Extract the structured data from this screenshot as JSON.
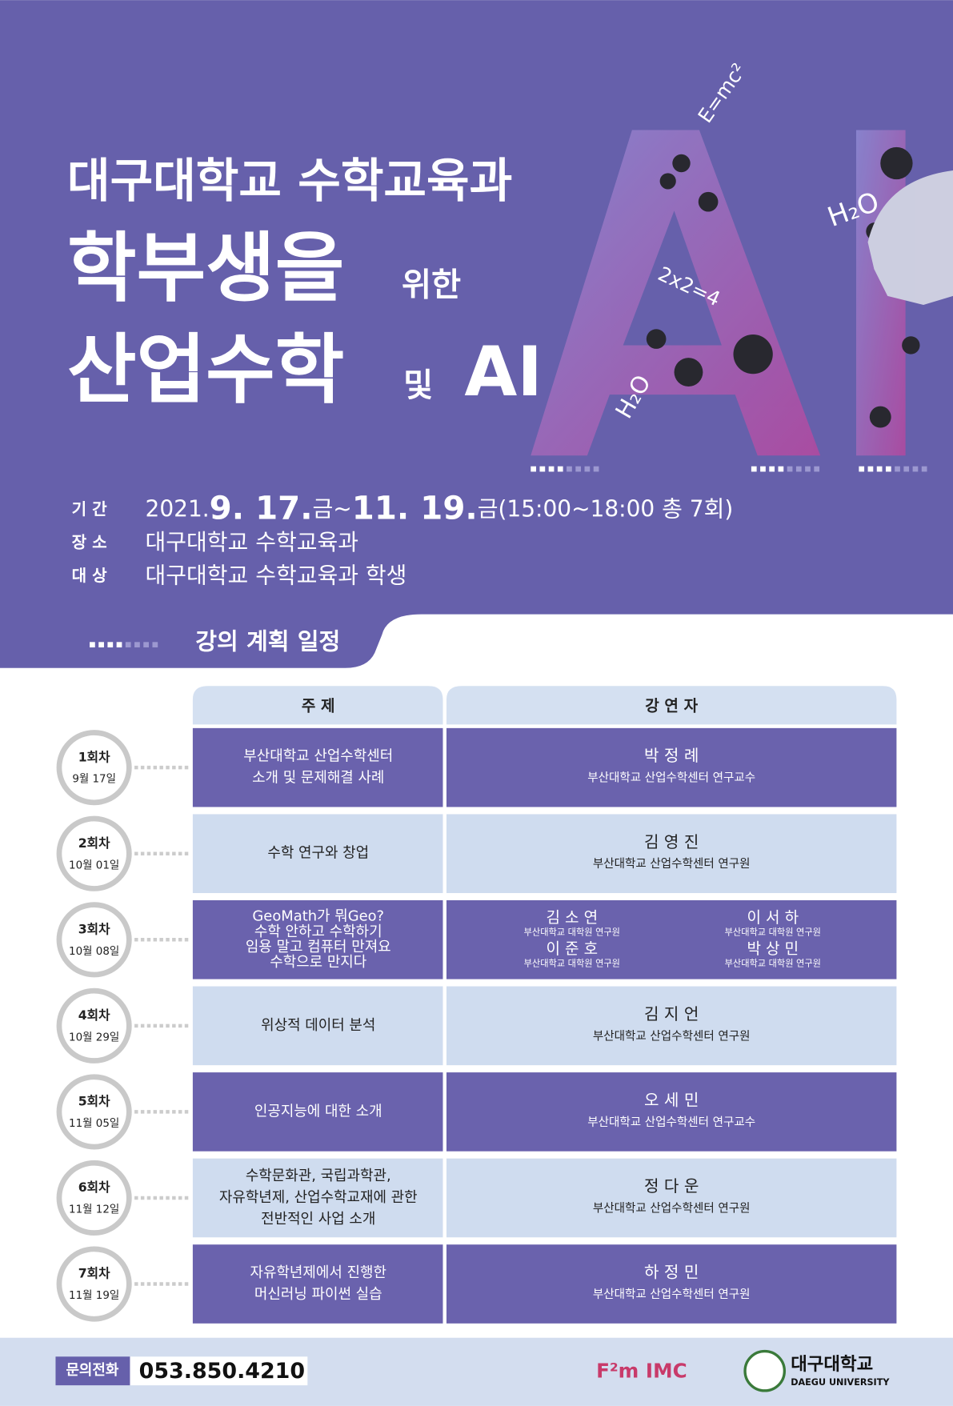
{
  "header": {
    "subtitle": "대구대학교 수학교육과",
    "title_line1": "학부생을",
    "title_line1_suffix": "위한",
    "title_line2": "산업수학",
    "title_line2_suffix": "및",
    "title_line2_end": "AI"
  },
  "decor": {
    "formulas": [
      "E=mc²",
      "H₂O",
      "2x2=4",
      "H₂O"
    ]
  },
  "info": [
    {
      "label": "기 간",
      "parts": [
        "2021.",
        "9. 17.",
        "금~",
        "11. 19.",
        "금",
        "(15:00~18:00 총 7회)"
      ]
    },
    {
      "label": "장 소",
      "parts": [
        "대구대학교 수학교육과"
      ]
    },
    {
      "label": "대 상",
      "parts": [
        "대구대학교 수학교육과  학생"
      ]
    }
  ],
  "schedule": {
    "title": "강의 계획 일정",
    "headers": [
      "주 제",
      "강 연 자"
    ],
    "sessions": [
      {
        "round": "1회차",
        "date": "9월 17일",
        "topic": [
          "부산대학교 산업수학센터",
          "소개 및 문제해결 사례"
        ],
        "speakers": [
          {
            "name": "박 정 례",
            "affiliation": "부산대학교 산업수학센터 연구교수"
          }
        ]
      },
      {
        "round": "2회차",
        "date": "10월 01일",
        "topic": [
          "수학 연구와 창업"
        ],
        "speakers": [
          {
            "name": "김 영 진",
            "affiliation": "부산대학교 산업수학센터 연구원"
          }
        ]
      },
      {
        "round": "3회차",
        "date": "10월 08일",
        "topic": [
          "GeoMath가 뭐Geo?",
          "수학 안하고 수학하기",
          "임용 말고 컴퓨터 만져요",
          "수학으로 만지다"
        ],
        "speakers": [
          {
            "name": "김 소 연",
            "affiliation": "부산대학교 대학원 연구원"
          },
          {
            "name": "이 서 하",
            "affiliation": "부산대학교 대학원 연구원"
          },
          {
            "name": "이 준 호",
            "affiliation": "부산대학교 대학원 연구원"
          },
          {
            "name": "박 상 민",
            "affiliation": "부산대학교 대학원 연구원"
          }
        ]
      },
      {
        "round": "4회차",
        "date": "10월 29일",
        "topic": [
          "위상적 데이터 분석"
        ],
        "speakers": [
          {
            "name": "김 지 언",
            "affiliation": "부산대학교 산업수학센터 연구원"
          }
        ]
      },
      {
        "round": "5회차",
        "date": "11월 05일",
        "topic": [
          "인공지능에 대한 소개"
        ],
        "speakers": [
          {
            "name": "오 세 민",
            "affiliation": "부산대학교 산업수학센터 연구교수"
          }
        ]
      },
      {
        "round": "6회차",
        "date": "11월 12일",
        "topic": [
          "수학문화관, 국립과학관,",
          "자유학년제, 산업수학교재에 관한",
          "전반적인 사업 소개"
        ],
        "speakers": [
          {
            "name": "정 다 운",
            "affiliation": "부산대학교 산업수학센터 연구원"
          }
        ]
      },
      {
        "round": "7회차",
        "date": "11월 19일",
        "topic": [
          "자유학년제에서 진행한",
          "머신러닝 파이썬 실습"
        ],
        "speakers": [
          {
            "name": "하 정 민",
            "affiliation": "부산대학교 산업수학센터 연구원"
          }
        ]
      }
    ]
  },
  "footer": {
    "contact_label": "문의전화",
    "phone": "053.850.4210",
    "logo1": "F²m IMC",
    "logo2": "대구대학교",
    "logo2_en": "DAEGU UNIVERSITY"
  }
}
